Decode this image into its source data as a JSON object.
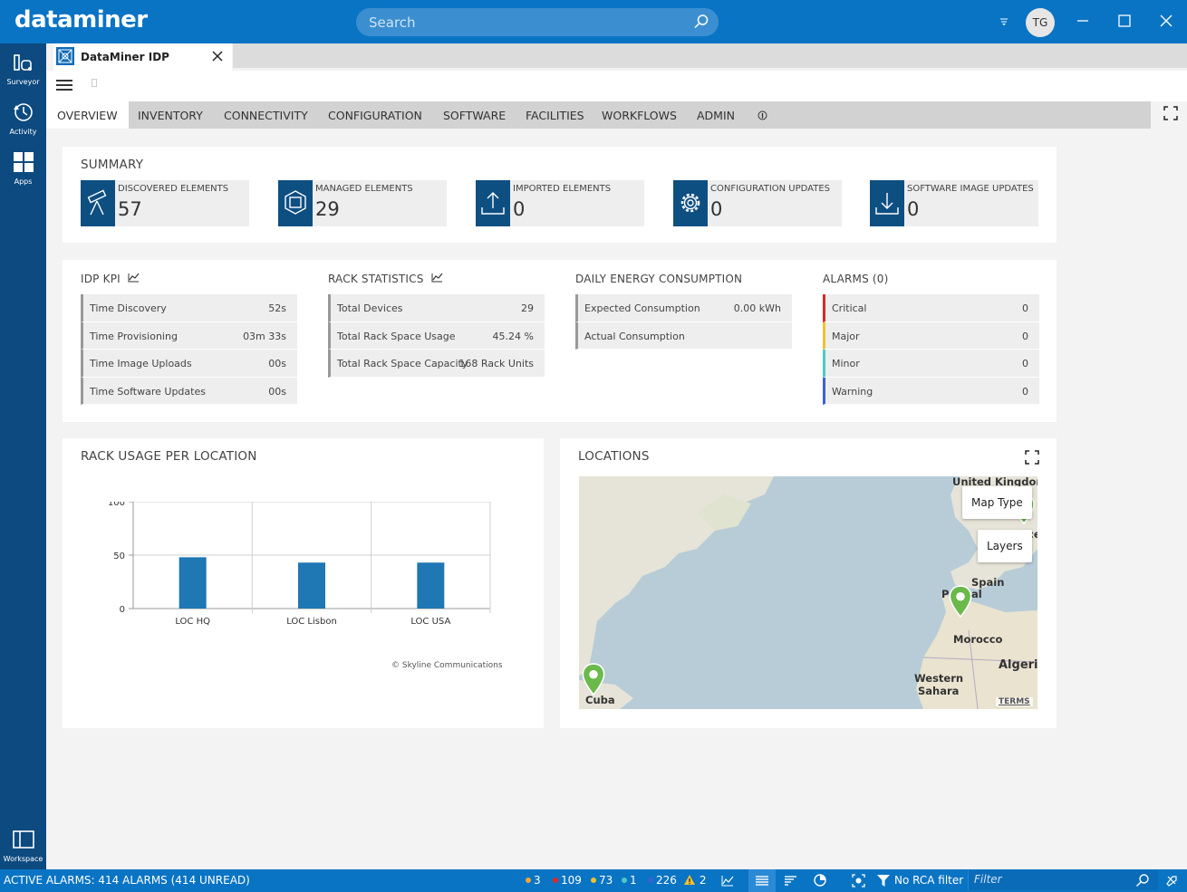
{
  "app": {
    "logo": "dataminer",
    "search_placeholder": "Search",
    "user_initials": "TG"
  },
  "rail": [
    {
      "label": "Surveyor",
      "icon": "surveyor-icon"
    },
    {
      "label": "Activity",
      "icon": "history-icon"
    },
    {
      "label": "Apps",
      "icon": "apps-grid-icon"
    },
    {
      "label": "Workspace",
      "icon": "workspace-icon"
    }
  ],
  "doc_tab": {
    "label": "DataMiner IDP"
  },
  "nav_tabs": [
    "OVERVIEW",
    "INVENTORY",
    "CONNECTIVITY",
    "CONFIGURATION",
    "SOFTWARE",
    "FACILITIES",
    "WORKFLOWS",
    "ADMIN"
  ],
  "summary": {
    "title": "SUMMARY",
    "tiles": [
      {
        "label": "DISCOVERED ELEMENTS",
        "value": "57",
        "icon": "telescope-icon"
      },
      {
        "label": "MANAGED ELEMENTS",
        "value": "29",
        "icon": "hexagon-icon"
      },
      {
        "label": "IMPORTED ELEMENTS",
        "value": "0",
        "icon": "upload-icon"
      },
      {
        "label": "CONFIGURATION UPDATES",
        "value": "0",
        "icon": "gear-icon"
      },
      {
        "label": "SOFTWARE IMAGE UPDATES",
        "value": "0",
        "icon": "download-icon"
      }
    ]
  },
  "idp_kpi": {
    "title": "IDP KPI",
    "rows": [
      {
        "k": "Time Discovery",
        "v": "52s"
      },
      {
        "k": "Time Provisioning",
        "v": "03m 33s"
      },
      {
        "k": "Time Image Uploads",
        "v": "00s"
      },
      {
        "k": "Time Software Updates",
        "v": "00s"
      }
    ]
  },
  "rack_stats": {
    "title": "RACK STATISTICS",
    "rows": [
      {
        "k": "Total Devices",
        "v": "29"
      },
      {
        "k": "Total Rack Space Usage",
        "v": "45.24 %"
      },
      {
        "k": "Total Rack Space Capacity",
        "v": "168 Rack Units"
      }
    ]
  },
  "energy": {
    "title": "DAILY ENERGY CONSUMPTION",
    "rows": [
      {
        "k": "Expected Consumption",
        "v": "0.00 kWh"
      },
      {
        "k": "Actual Consumption",
        "v": ""
      }
    ]
  },
  "alarms": {
    "title": "ALARMS (0)",
    "rows": [
      {
        "k": "Critical",
        "v": "0",
        "color": "#e0262a"
      },
      {
        "k": "Major",
        "v": "0",
        "color": "#f2c12e"
      },
      {
        "k": "Minor",
        "v": "0",
        "color": "#4cc9c9"
      },
      {
        "k": "Warning",
        "v": "0",
        "color": "#3a62d9"
      }
    ]
  },
  "rack_usage": {
    "title": "RACK USAGE PER LOCATION",
    "credit": "© Skyline Communications"
  },
  "chart_data": {
    "type": "bar",
    "categories": [
      "LOC HQ",
      "LOC Lisbon",
      "LOC USA"
    ],
    "values": [
      48,
      43,
      43
    ],
    "title": "",
    "xlabel": "",
    "ylabel": "",
    "ylim": [
      0,
      100
    ],
    "yticks": [
      "0",
      "50",
      "100"
    ],
    "color": "#1f77b4"
  },
  "locations": {
    "title": "LOCATIONS",
    "map_type": "Map Type",
    "layers": "Layers",
    "labels": [
      "United Kingdom",
      "Spain",
      "P",
      "al",
      "Morocco",
      "Algeria",
      "Western",
      "Sahara",
      "Cuba",
      "ce"
    ],
    "terms": "TERMS"
  },
  "footer": {
    "active_alarms": "ACTIVE ALARMS: 414 ALARMS (414 UNREAD)",
    "counts": [
      {
        "n": "3",
        "color": "#f2a33a"
      },
      {
        "n": "109",
        "color": "#e0262a"
      },
      {
        "n": "73",
        "color": "#f2c12e"
      },
      {
        "n": "1",
        "color": "#4cc9c9"
      },
      {
        "n": "226",
        "color": "#3a62d9"
      }
    ],
    "warning_count": "2",
    "rca": "No RCA filter",
    "filter_placeholder": "Filter"
  }
}
